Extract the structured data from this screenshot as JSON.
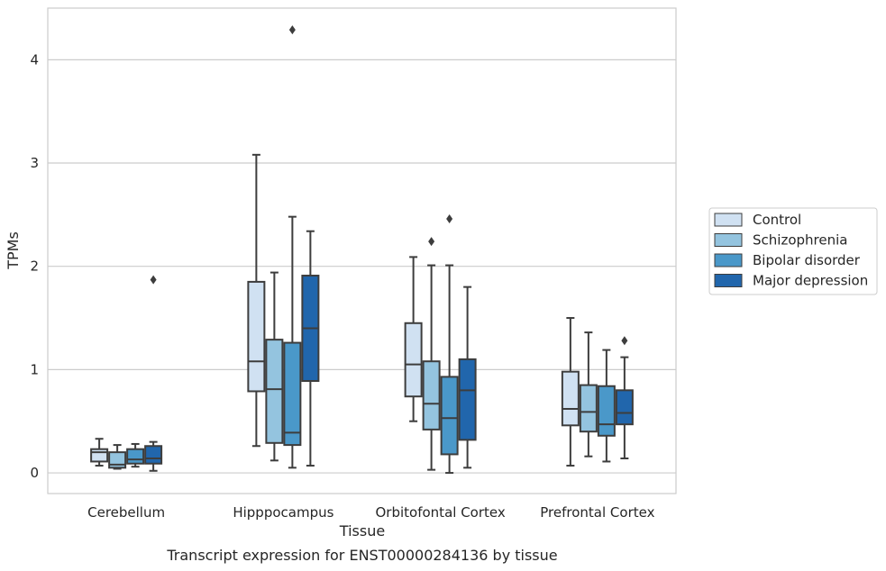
{
  "chart_data": {
    "type": "box",
    "caption": "Transcript expression for ENST00000284136 by tissue",
    "xlabel": "Tissue",
    "ylabel": "TPMs",
    "ylim": [
      -0.2,
      4.5
    ],
    "yticks": [
      0,
      1,
      2,
      3,
      4
    ],
    "grid": true,
    "legend_position": "right",
    "categories": [
      "Cerebellum",
      "Hipppocampus",
      "Orbitofontal Cortex",
      "Prefrontal Cortex"
    ],
    "series": [
      {
        "name": "Control",
        "color": "#d0e1f2",
        "boxes": [
          {
            "whisker_low": 0.07,
            "q1": 0.11,
            "median": 0.2,
            "q3": 0.23,
            "whisker_high": 0.33,
            "outliers": []
          },
          {
            "whisker_low": 0.26,
            "q1": 0.79,
            "median": 1.08,
            "q3": 1.85,
            "whisker_high": 3.08,
            "outliers": []
          },
          {
            "whisker_low": 0.5,
            "q1": 0.74,
            "median": 1.05,
            "q3": 1.45,
            "whisker_high": 2.09,
            "outliers": []
          },
          {
            "whisker_low": 0.07,
            "q1": 0.46,
            "median": 0.62,
            "q3": 0.98,
            "whisker_high": 1.5,
            "outliers": []
          }
        ]
      },
      {
        "name": "Schizophrenia",
        "color": "#94c4df",
        "boxes": [
          {
            "whisker_low": 0.04,
            "q1": 0.05,
            "median": 0.08,
            "q3": 0.2,
            "whisker_high": 0.27,
            "outliers": []
          },
          {
            "whisker_low": 0.12,
            "q1": 0.29,
            "median": 0.81,
            "q3": 1.29,
            "whisker_high": 1.94,
            "outliers": []
          },
          {
            "whisker_low": 0.03,
            "q1": 0.42,
            "median": 0.67,
            "q3": 1.08,
            "whisker_high": 2.01,
            "outliers": [
              2.24
            ]
          },
          {
            "whisker_low": 0.16,
            "q1": 0.4,
            "median": 0.59,
            "q3": 0.85,
            "whisker_high": 1.36,
            "outliers": []
          }
        ]
      },
      {
        "name": "Bipolar disorder",
        "color": "#4a98c9",
        "boxes": [
          {
            "whisker_low": 0.06,
            "q1": 0.09,
            "median": 0.13,
            "q3": 0.23,
            "whisker_high": 0.28,
            "outliers": []
          },
          {
            "whisker_low": 0.05,
            "q1": 0.27,
            "median": 0.39,
            "q3": 1.26,
            "whisker_high": 2.48,
            "outliers": [
              4.29
            ]
          },
          {
            "whisker_low": 0.0,
            "q1": 0.18,
            "median": 0.53,
            "q3": 0.93,
            "whisker_high": 2.01,
            "outliers": [
              2.46
            ]
          },
          {
            "whisker_low": 0.11,
            "q1": 0.36,
            "median": 0.47,
            "q3": 0.84,
            "whisker_high": 1.19,
            "outliers": []
          }
        ]
      },
      {
        "name": "Major depression",
        "color": "#2166ac",
        "boxes": [
          {
            "whisker_low": 0.02,
            "q1": 0.09,
            "median": 0.14,
            "q3": 0.26,
            "whisker_high": 0.3,
            "outliers": [
              1.87
            ]
          },
          {
            "whisker_low": 0.07,
            "q1": 0.89,
            "median": 1.4,
            "q3": 1.91,
            "whisker_high": 2.34,
            "outliers": []
          },
          {
            "whisker_low": 0.05,
            "q1": 0.32,
            "median": 0.8,
            "q3": 1.1,
            "whisker_high": 1.8,
            "outliers": []
          },
          {
            "whisker_low": 0.14,
            "q1": 0.47,
            "median": 0.58,
            "q3": 0.8,
            "whisker_high": 1.12,
            "outliers": [
              1.28
            ]
          }
        ]
      }
    ]
  }
}
